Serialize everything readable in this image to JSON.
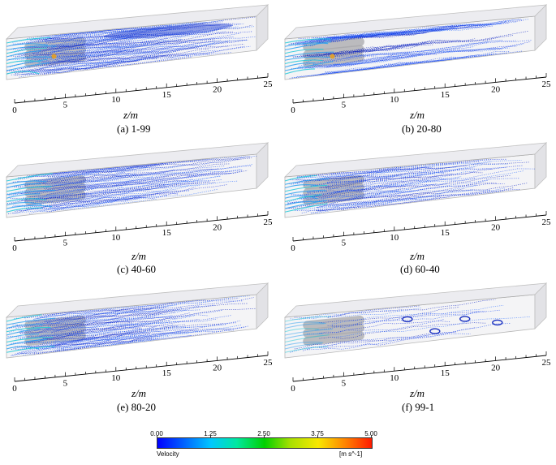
{
  "panels": [
    {
      "caption": "(a) 1-99",
      "variant": "a"
    },
    {
      "caption": "(b) 20-80",
      "variant": "b"
    },
    {
      "caption": "(c) 40-60",
      "variant": "c"
    },
    {
      "caption": "(d) 60-40",
      "variant": "d"
    },
    {
      "caption": "(e) 80-20",
      "variant": "e"
    },
    {
      "caption": "(f) 99-1",
      "variant": "f"
    }
  ],
  "axis": {
    "label": "z/m",
    "ticks": [
      "0",
      "5",
      "10",
      "15",
      "20",
      "25"
    ]
  },
  "legend": {
    "title": "Velocity",
    "unit": "[m s^-1]",
    "ticks": [
      "0.00",
      "1.25",
      "2.50",
      "3.75",
      "5.00"
    ],
    "colors": [
      "#0000ff",
      "#00c8ff",
      "#00d000",
      "#f8e800",
      "#ff1a00"
    ]
  }
}
